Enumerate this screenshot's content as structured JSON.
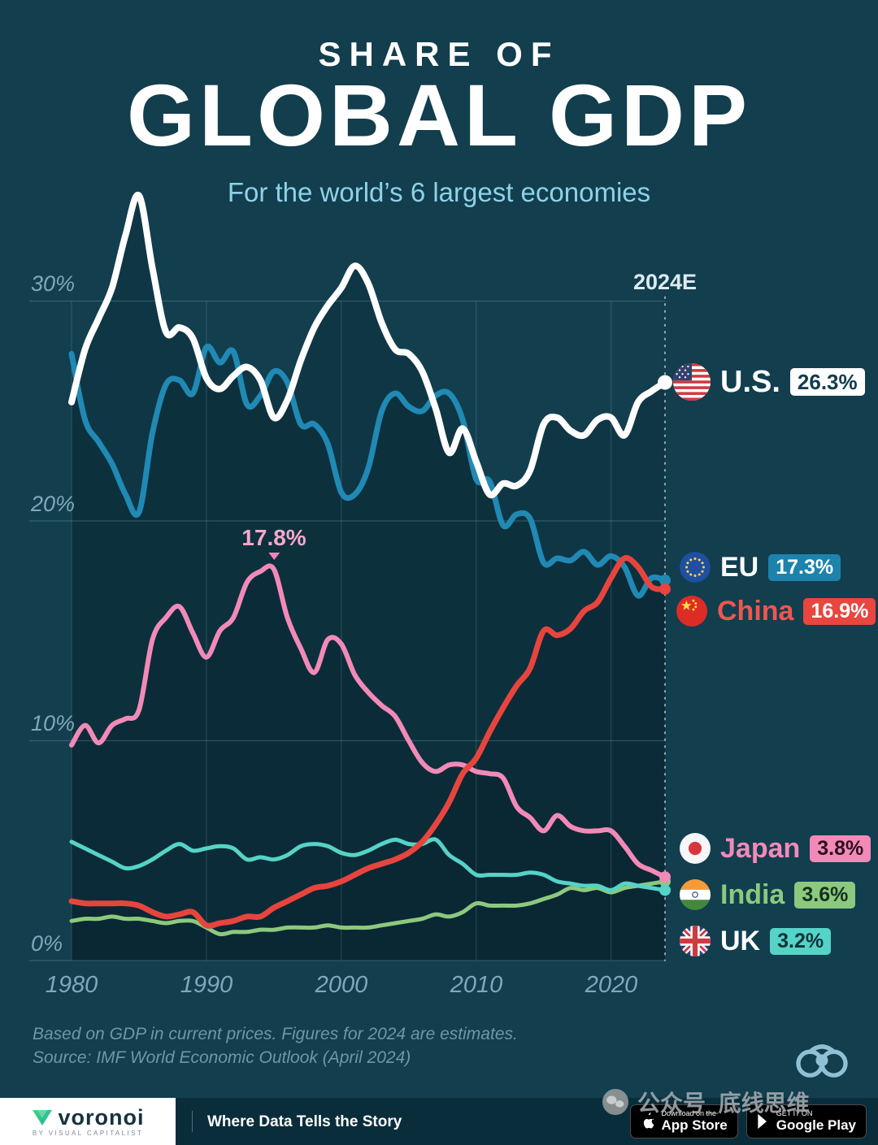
{
  "header": {
    "kicker": "SHARE OF",
    "title": "GLOBAL GDP",
    "subtitle": "For the world’s 6 largest economies"
  },
  "chart_data": {
    "type": "line",
    "title": "Share of Global GDP for the world's 6 largest economies",
    "xlabel": "",
    "ylabel": "Share of global GDP (%)",
    "ylim": [
      0,
      35
    ],
    "grid": true,
    "legend_position": "right",
    "end_label": "2024E",
    "x_ticks": [
      1980,
      1990,
      2000,
      2010,
      2020
    ],
    "y_ticks": [
      "30%",
      "20%",
      "10%",
      "0%"
    ],
    "annotation": {
      "text": "17.8%",
      "series": "Japan",
      "year": 1995
    },
    "x": [
      1980,
      1981,
      1982,
      1983,
      1984,
      1985,
      1986,
      1987,
      1988,
      1989,
      1990,
      1991,
      1992,
      1993,
      1994,
      1995,
      1996,
      1997,
      1998,
      1999,
      2000,
      2001,
      2002,
      2003,
      2004,
      2005,
      2006,
      2007,
      2008,
      2009,
      2010,
      2011,
      2012,
      2013,
      2014,
      2015,
      2016,
      2017,
      2018,
      2019,
      2020,
      2021,
      2022,
      2023,
      2024
    ],
    "series": [
      {
        "name": "U.S.",
        "color": "#ffffff",
        "end_value": "26.3%",
        "area": true,
        "values": [
          25.4,
          27.8,
          29.2,
          30.6,
          33.0,
          34.8,
          31.5,
          28.6,
          28.8,
          28.3,
          26.5,
          26.0,
          26.6,
          27.0,
          26.4,
          24.7,
          25.5,
          27.3,
          28.8,
          29.8,
          30.6,
          31.6,
          30.8,
          29.0,
          27.8,
          27.6,
          26.8,
          25.1,
          23.1,
          24.2,
          22.7,
          21.2,
          21.7,
          21.6,
          22.3,
          24.4,
          24.7,
          24.1,
          23.9,
          24.6,
          24.7,
          23.9,
          25.4,
          25.9,
          26.3
        ]
      },
      {
        "name": "EU",
        "color": "#2089b4",
        "end_value": "17.3%",
        "area": true,
        "values": [
          27.6,
          24.6,
          23.6,
          22.6,
          21.2,
          20.4,
          24.0,
          26.2,
          26.4,
          25.8,
          27.9,
          27.2,
          27.7,
          25.3,
          25.7,
          26.8,
          26.3,
          24.4,
          24.4,
          23.5,
          21.3,
          21.2,
          22.4,
          25.0,
          25.8,
          25.2,
          25.0,
          25.7,
          25.8,
          24.6,
          21.9,
          21.8,
          19.8,
          20.3,
          20.1,
          18.1,
          18.3,
          18.2,
          18.6,
          18.0,
          18.4,
          17.9,
          16.6,
          17.4,
          17.3
        ]
      },
      {
        "name": "China",
        "color": "#e8443e",
        "end_value": "16.9%",
        "area": true,
        "values": [
          2.7,
          2.6,
          2.6,
          2.6,
          2.6,
          2.5,
          2.2,
          2.0,
          2.1,
          2.2,
          1.6,
          1.7,
          1.8,
          2.0,
          2.0,
          2.4,
          2.7,
          3.0,
          3.3,
          3.4,
          3.6,
          3.9,
          4.2,
          4.4,
          4.6,
          4.9,
          5.4,
          6.2,
          7.2,
          8.5,
          9.2,
          10.4,
          11.5,
          12.5,
          13.3,
          15.0,
          14.8,
          15.1,
          15.9,
          16.3,
          17.4,
          18.3,
          17.9,
          17.0,
          16.9
        ]
      },
      {
        "name": "Japan",
        "color": "#f28ab8",
        "end_value": "3.8%",
        "area": true,
        "values": [
          9.8,
          10.7,
          9.9,
          10.7,
          11.0,
          11.4,
          14.6,
          15.6,
          16.1,
          14.9,
          13.8,
          15.0,
          15.6,
          17.2,
          17.7,
          17.8,
          15.6,
          14.2,
          13.1,
          14.6,
          14.4,
          13.0,
          12.2,
          11.6,
          11.1,
          10.0,
          9.0,
          8.6,
          8.9,
          8.9,
          8.6,
          8.5,
          8.3,
          7.0,
          6.5,
          5.9,
          6.6,
          6.1,
          5.9,
          5.9,
          5.9,
          5.2,
          4.4,
          4.1,
          3.8
        ]
      },
      {
        "name": "India",
        "color": "#8cc97e",
        "end_value": "3.6%",
        "area": false,
        "values": [
          1.8,
          1.9,
          1.9,
          2.0,
          1.9,
          1.9,
          1.8,
          1.7,
          1.8,
          1.8,
          1.5,
          1.2,
          1.3,
          1.3,
          1.4,
          1.4,
          1.5,
          1.5,
          1.5,
          1.6,
          1.5,
          1.5,
          1.5,
          1.6,
          1.7,
          1.8,
          1.9,
          2.1,
          2.0,
          2.2,
          2.6,
          2.5,
          2.5,
          2.5,
          2.6,
          2.8,
          3.0,
          3.3,
          3.2,
          3.3,
          3.1,
          3.3,
          3.4,
          3.5,
          3.6
        ]
      },
      {
        "name": "UK",
        "color": "#55d3c7",
        "end_value": "3.2%",
        "area": false,
        "values": [
          5.4,
          5.1,
          4.8,
          4.5,
          4.2,
          4.3,
          4.6,
          5.0,
          5.3,
          5.0,
          5.1,
          5.2,
          5.1,
          4.6,
          4.7,
          4.6,
          4.8,
          5.2,
          5.3,
          5.2,
          4.9,
          4.8,
          5.0,
          5.3,
          5.5,
          5.3,
          5.3,
          5.5,
          4.8,
          4.4,
          3.9,
          3.9,
          3.9,
          3.9,
          4.0,
          3.9,
          3.6,
          3.5,
          3.4,
          3.4,
          3.2,
          3.5,
          3.4,
          3.3,
          3.2
        ]
      }
    ]
  },
  "legend": [
    {
      "label": "U.S.",
      "value": "26.3%"
    },
    {
      "label": "EU",
      "value": "17.3%"
    },
    {
      "label": "China",
      "value": "16.9%"
    },
    {
      "label": "Japan",
      "value": "3.8%"
    },
    {
      "label": "India",
      "value": "3.6%"
    },
    {
      "label": "UK",
      "value": "3.2%"
    }
  ],
  "footnote": {
    "line1": "Based on GDP in current prices. Figures for 2024 are estimates.",
    "line2": "Source: IMF World Economic Outlook (April 2024)"
  },
  "watermark": {
    "text": "公众号_底线思维"
  },
  "footer": {
    "brand": "voronoi",
    "brand_sub": "BY VISUAL CAPITALIST",
    "tagline": "Where Data Tells the Story",
    "app_store": {
      "top": "Download on the",
      "bottom": "App Store"
    },
    "google_play": {
      "top": "GET IT ON",
      "bottom": "Google Play"
    }
  },
  "colors": {
    "background": "#123e4e",
    "us": "#ffffff",
    "eu": "#2089b4",
    "china": "#e8443e",
    "japan": "#f28ab8",
    "india": "#8cc97e",
    "uk": "#55d3c7"
  }
}
